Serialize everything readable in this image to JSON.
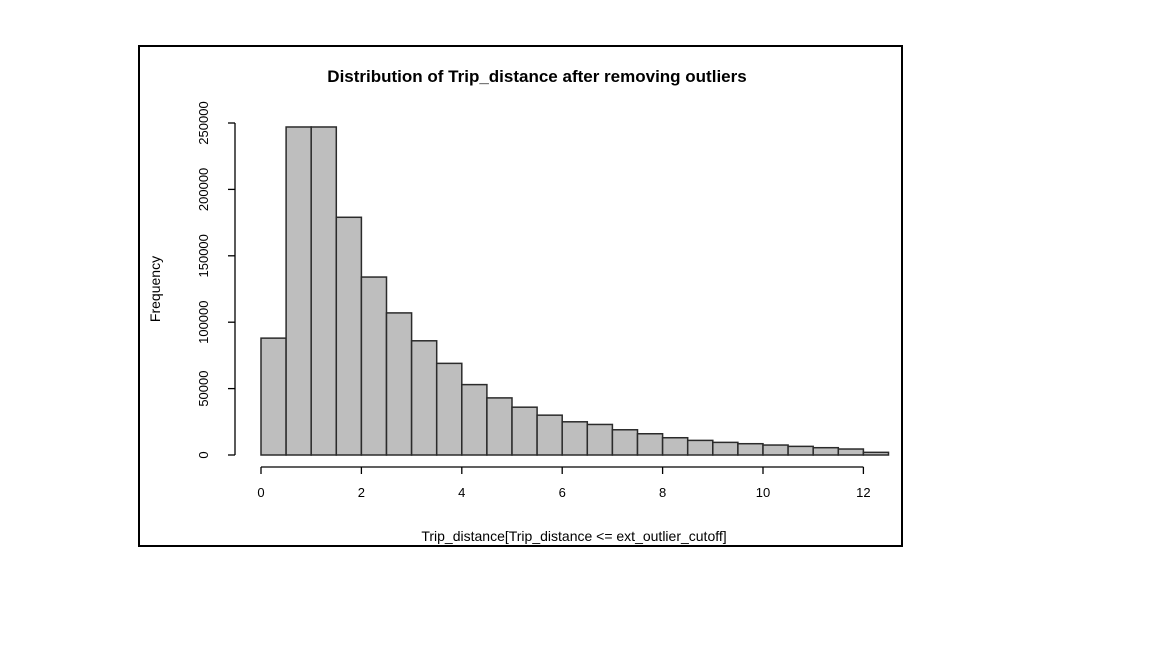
{
  "chart_data": {
    "type": "bar",
    "title": "Distribution of Trip_distance after removing outliers",
    "xlabel": "Trip_distance[Trip_distance <= ext_outlier_cutoff]",
    "ylabel": "Frequency",
    "xlim": [
      0,
      12.5
    ],
    "ylim": [
      0,
      250000
    ],
    "x_ticks": [
      "0",
      "2",
      "4",
      "6",
      "8",
      "10",
      "12"
    ],
    "y_ticks": [
      "0",
      "50000",
      "100000",
      "150000",
      "200000",
      "250000"
    ],
    "bin_width": 0.5,
    "bins": [
      {
        "start": 0.0,
        "value": 88000
      },
      {
        "start": 0.5,
        "value": 247000
      },
      {
        "start": 1.0,
        "value": 247000
      },
      {
        "start": 1.5,
        "value": 179000
      },
      {
        "start": 2.0,
        "value": 134000
      },
      {
        "start": 2.5,
        "value": 107000
      },
      {
        "start": 3.0,
        "value": 86000
      },
      {
        "start": 3.5,
        "value": 69000
      },
      {
        "start": 4.0,
        "value": 53000
      },
      {
        "start": 4.5,
        "value": 43000
      },
      {
        "start": 5.0,
        "value": 36000
      },
      {
        "start": 5.5,
        "value": 30000
      },
      {
        "start": 6.0,
        "value": 25000
      },
      {
        "start": 6.5,
        "value": 23000
      },
      {
        "start": 7.0,
        "value": 19000
      },
      {
        "start": 7.5,
        "value": 16000
      },
      {
        "start": 8.0,
        "value": 13000
      },
      {
        "start": 8.5,
        "value": 11000
      },
      {
        "start": 9.0,
        "value": 9500
      },
      {
        "start": 9.5,
        "value": 8500
      },
      {
        "start": 10.0,
        "value": 7500
      },
      {
        "start": 10.5,
        "value": 6500
      },
      {
        "start": 11.0,
        "value": 5500
      },
      {
        "start": 11.5,
        "value": 4500
      },
      {
        "start": 12.0,
        "value": 2000
      }
    ],
    "bar_color": "#bebebe",
    "grid": false
  }
}
